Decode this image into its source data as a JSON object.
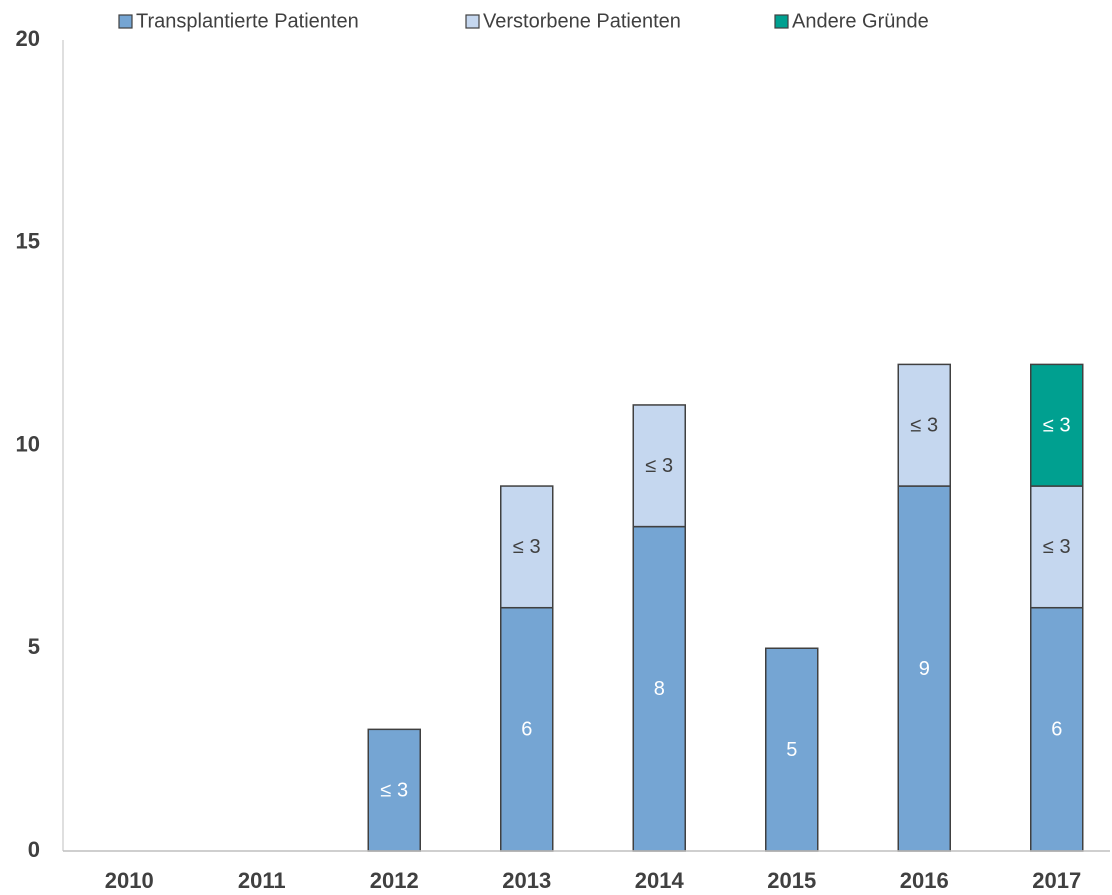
{
  "chart_data": {
    "type": "stacked_bar",
    "categories": [
      "2010",
      "2011",
      "2012",
      "2013",
      "2014",
      "2015",
      "2016",
      "2017"
    ],
    "series": [
      {
        "name": "Transplantierte Patienten",
        "color": "#75a5d3",
        "values": [
          null,
          null,
          3,
          6,
          8,
          5,
          9,
          6
        ],
        "value_labels": [
          null,
          null,
          "≤ 3",
          "6",
          "8",
          "5",
          "9",
          "6"
        ]
      },
      {
        "name": "Verstorbene Patienten",
        "color": "#c5d7ef",
        "values": [
          null,
          null,
          null,
          3,
          3,
          null,
          3,
          3
        ],
        "value_labels": [
          null,
          null,
          null,
          "≤ 3",
          "≤ 3",
          null,
          "≤ 3",
          "≤ 3"
        ]
      },
      {
        "name": "Andere Gründe",
        "color": "#00a090",
        "values": [
          null,
          null,
          null,
          null,
          null,
          null,
          null,
          3
        ],
        "value_labels": [
          null,
          null,
          null,
          null,
          null,
          null,
          null,
          "≤ 3"
        ]
      }
    ],
    "ylim": [
      0,
      20
    ],
    "yticks": [
      0,
      5,
      10,
      15,
      20
    ],
    "legend": "top"
  }
}
